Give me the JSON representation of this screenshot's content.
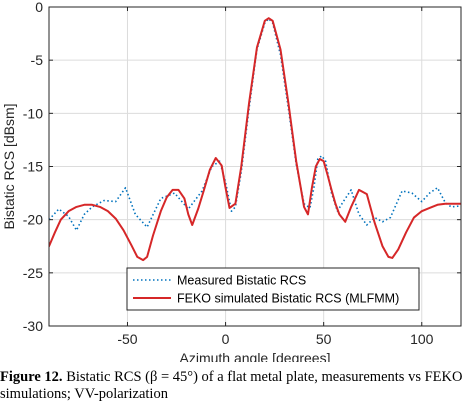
{
  "chart_data": {
    "type": "line",
    "xlabel": "Azimuth angle  [degrees]",
    "ylabel": "Bistatic RCS [dBsm]",
    "xlim": [
      -90,
      120
    ],
    "ylim": [
      -30,
      0
    ],
    "xticks": [
      -50,
      0,
      50,
      100
    ],
    "yticks": [
      0,
      -5,
      -10,
      -15,
      -20,
      -25,
      -30
    ],
    "grid": true,
    "legend_position": "bottom",
    "series": [
      {
        "name": "Measured Bistatic RCS",
        "color": "#0072BD",
        "style": "dotted",
        "x": [
          -90,
          -85,
          -80,
          -76,
          -72,
          -68,
          -62,
          -56,
          -51,
          -46,
          -40,
          -33,
          -26,
          -19,
          -12,
          -7,
          -3,
          0,
          3,
          5,
          8,
          12,
          16,
          20,
          22,
          24,
          28,
          32,
          36,
          40,
          43,
          45,
          47,
          49,
          51,
          54,
          57,
          60,
          64,
          68,
          72,
          76,
          80,
          84,
          90,
          95,
          100,
          104,
          108,
          112,
          115,
          120
        ],
        "y": [
          -20.0,
          -19.0,
          -19.7,
          -21.0,
          -19.5,
          -18.8,
          -18.2,
          -18.3,
          -17.0,
          -19.5,
          -20.7,
          -18.0,
          -17.5,
          -19.0,
          -17.3,
          -15.0,
          -14.5,
          -16.5,
          -19.2,
          -18.8,
          -15.5,
          -9.5,
          -4.0,
          -1.5,
          -1.1,
          -1.5,
          -4.5,
          -9.5,
          -14.8,
          -18.5,
          -18.9,
          -17.0,
          -14.3,
          -14.0,
          -14.5,
          -17.5,
          -19.2,
          -18.3,
          -17.2,
          -19.5,
          -20.5,
          -19.8,
          -20.2,
          -19.8,
          -17.3,
          -17.5,
          -18.3,
          -17.5,
          -17.0,
          -18.4,
          -18.8,
          -18.7
        ]
      },
      {
        "name": "FEKO simulated Bistatic RCS (MLFMM)",
        "color": "#D62728",
        "style": "solid",
        "x": [
          -90,
          -87,
          -84,
          -80,
          -76,
          -72,
          -68,
          -64,
          -60,
          -56,
          -52,
          -48,
          -45,
          -42,
          -40,
          -37,
          -33,
          -30,
          -27,
          -24,
          -21,
          -19,
          -17,
          -14,
          -11,
          -8,
          -5,
          -2,
          0,
          2,
          5,
          8,
          12,
          16,
          20,
          22,
          24,
          28,
          32,
          36,
          40,
          42,
          44,
          46,
          48,
          50,
          52,
          54,
          56,
          58,
          61,
          64,
          68,
          72,
          76,
          80,
          83,
          85,
          88,
          92,
          96,
          100,
          104,
          108,
          112,
          116,
          120
        ],
        "y": [
          -22.5,
          -21.2,
          -20.0,
          -19.2,
          -18.8,
          -18.6,
          -18.6,
          -18.8,
          -19.2,
          -19.9,
          -21.0,
          -22.4,
          -23.5,
          -23.8,
          -23.5,
          -21.5,
          -19.2,
          -17.9,
          -17.2,
          -17.2,
          -18.0,
          -19.5,
          -20.5,
          -19.0,
          -17.2,
          -15.3,
          -14.2,
          -14.9,
          -17.0,
          -18.9,
          -18.5,
          -15.0,
          -9.0,
          -3.8,
          -1.3,
          -1.05,
          -1.3,
          -4.0,
          -9.0,
          -14.5,
          -18.8,
          -19.5,
          -17.0,
          -15.0,
          -14.3,
          -14.5,
          -15.8,
          -17.2,
          -18.5,
          -19.5,
          -20.2,
          -18.8,
          -17.2,
          -17.6,
          -20.3,
          -22.5,
          -23.5,
          -23.6,
          -22.8,
          -21.2,
          -19.8,
          -19.2,
          -18.9,
          -18.6,
          -18.5,
          -18.5,
          -18.5
        ]
      }
    ]
  },
  "caption": {
    "label": "Figure 12.",
    "text": " Bistatic RCS (β = 45°) of a flat metal plate, measurements vs FEKO",
    "line2": "simulations; VV-polarization"
  }
}
